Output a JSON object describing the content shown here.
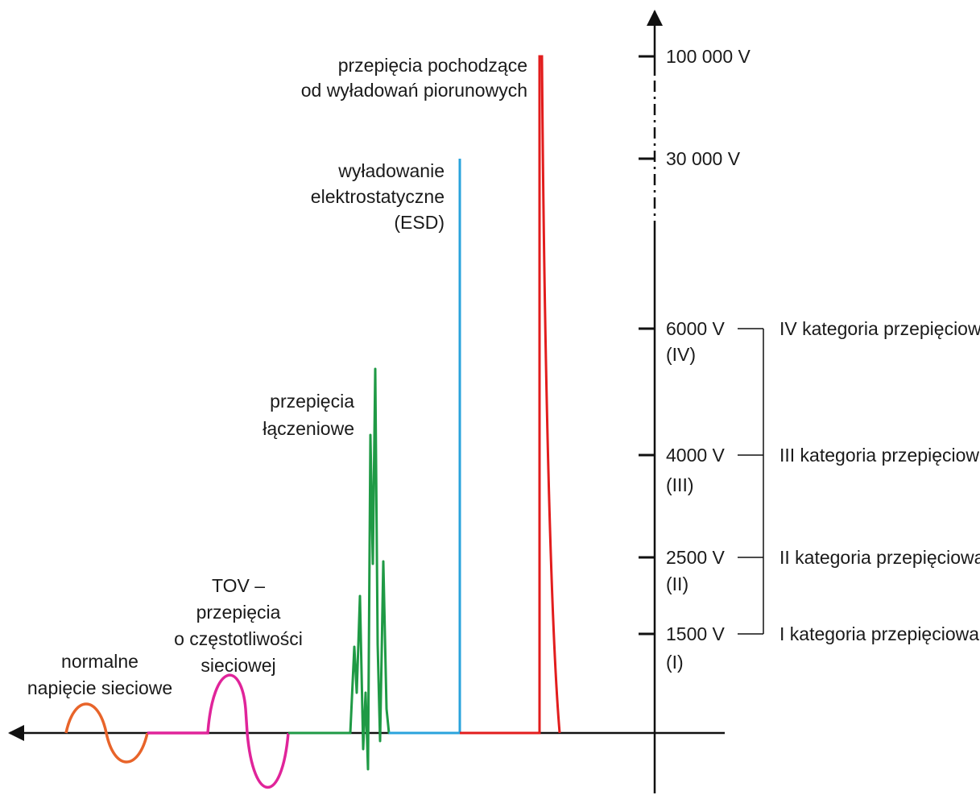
{
  "colors": {
    "axis": "#111111",
    "normal": "#e8642a",
    "tov": "#e0249a",
    "switching": "#1f9a45",
    "esd": "#2aa3dd",
    "lightning": "#e21d1d"
  },
  "labels": {
    "normal": [
      "normalne",
      "napięcie sieciowe"
    ],
    "tov": [
      "TOV –",
      "przepięcia",
      "o częstotliwości",
      "sieciowej"
    ],
    "switching": [
      "przepięcia",
      "łączeniowe"
    ],
    "esd": [
      "wyładowanie",
      "elektrostatyczne",
      "(ESD)"
    ],
    "lightning": [
      "przepięcia pochodzące",
      "od wyładowań piorunowych"
    ]
  },
  "axis_ticks": [
    {
      "value": "100 000 V",
      "sub": ""
    },
    {
      "value": "30 000 V",
      "sub": ""
    },
    {
      "value": "6000 V",
      "sub": "(IV)"
    },
    {
      "value": "4000 V",
      "sub": "(III)"
    },
    {
      "value": "2500 V",
      "sub": "(II)"
    },
    {
      "value": "1500 V",
      "sub": "(I)"
    }
  ],
  "categories": [
    "IV kategoria przepięciowa",
    "III kategoria przepięciowa",
    "II kategoria przepięciowa",
    "I kategoria przepięciowa"
  ]
}
